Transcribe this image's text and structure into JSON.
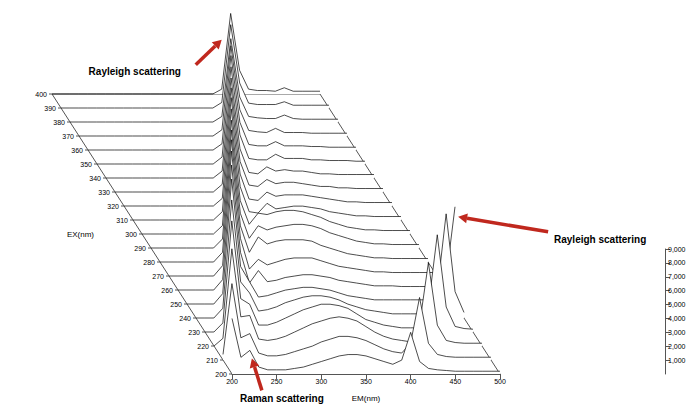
{
  "chart_data": {
    "type": "waterfall",
    "xlabel": "EM(nm)",
    "ylabel": "EX(nm)",
    "color": "#000000",
    "x": [
      200,
      210,
      220,
      230,
      240,
      250,
      260,
      270,
      280,
      290,
      300,
      310,
      320,
      330,
      340,
      350,
      360,
      370,
      380,
      390,
      400,
      410,
      420,
      430,
      440,
      450,
      460,
      470,
      480,
      490,
      500
    ],
    "y": [
      200,
      210,
      220,
      230,
      240,
      250,
      260,
      270,
      280,
      290,
      300,
      310,
      320,
      330,
      340,
      350,
      360,
      370,
      380,
      390,
      400
    ],
    "z": [
      [
        4000,
        1200,
        1700,
        500,
        300,
        300,
        300,
        400,
        500,
        700,
        900,
        1100,
        1300,
        1400,
        1400,
        1300,
        1100,
        900,
        700,
        1000,
        3000,
        900,
        400,
        300,
        250,
        200,
        200,
        200,
        200,
        200,
        200
      ],
      [
        400,
        5500,
        1600,
        1900,
        500,
        300,
        300,
        400,
        600,
        800,
        1000,
        1300,
        1500,
        1700,
        1700,
        1600,
        1400,
        1100,
        800,
        600,
        500,
        1200,
        4500,
        1200,
        400,
        250,
        200,
        200,
        200,
        200,
        200
      ],
      [
        0,
        550,
        7000,
        2100,
        2200,
        500,
        400,
        500,
        700,
        1000,
        1300,
        1600,
        1800,
        2000,
        2100,
        2000,
        1800,
        1400,
        1000,
        700,
        500,
        400,
        300,
        1500,
        6000,
        1500,
        400,
        250,
        200,
        200,
        200
      ],
      [
        0,
        0,
        650,
        8000,
        2400,
        2000,
        500,
        500,
        700,
        1000,
        1300,
        1600,
        1800,
        2000,
        2000,
        1900,
        1700,
        1300,
        900,
        700,
        500,
        400,
        300,
        300,
        300,
        1800,
        7000,
        1800,
        400,
        250,
        200
      ],
      [
        0,
        0,
        0,
        700,
        8500,
        2600,
        1800,
        500,
        600,
        800,
        1100,
        1300,
        1500,
        1600,
        1600,
        1500,
        1300,
        1000,
        800,
        600,
        500,
        400,
        300,
        300,
        300,
        300,
        300,
        1900,
        7500,
        1900,
        400
      ],
      [
        0,
        0,
        0,
        0,
        750,
        9000,
        2700,
        1600,
        500,
        600,
        800,
        1000,
        1100,
        1200,
        1200,
        1100,
        1000,
        800,
        600,
        500,
        400,
        300,
        300,
        300,
        300,
        300,
        300,
        300,
        400,
        1800,
        7000
      ],
      [
        0,
        0,
        0,
        0,
        0,
        750,
        9000,
        2700,
        500,
        1400,
        600,
        700,
        900,
        1000,
        1100,
        1100,
        1000,
        900,
        700,
        600,
        500,
        400,
        300,
        300,
        300,
        250,
        250,
        250,
        250,
        250,
        250
      ],
      [
        0,
        0,
        0,
        0,
        0,
        0,
        750,
        9000,
        2700,
        500,
        1200,
        800,
        1000,
        1200,
        1300,
        1300,
        1300,
        1100,
        900,
        700,
        600,
        500,
        400,
        300,
        300,
        250,
        250,
        250,
        250,
        250,
        250
      ],
      [
        0,
        0,
        0,
        0,
        0,
        0,
        0,
        700,
        8800,
        2600,
        700,
        1800,
        1300,
        1500,
        1600,
        1600,
        1600,
        1500,
        1200,
        1000,
        800,
        600,
        500,
        400,
        300,
        300,
        250,
        250,
        250,
        250,
        250
      ],
      [
        0,
        0,
        0,
        0,
        0,
        0,
        0,
        0,
        650,
        8500,
        2500,
        700,
        1600,
        1300,
        1500,
        1600,
        1700,
        1700,
        1600,
        1400,
        1100,
        900,
        700,
        500,
        400,
        300,
        300,
        250,
        250,
        250,
        250
      ],
      [
        0,
        0,
        0,
        0,
        0,
        0,
        0,
        0,
        0,
        600,
        8200,
        2400,
        700,
        1500,
        1400,
        1600,
        1700,
        1700,
        1600,
        1400,
        1200,
        900,
        700,
        500,
        400,
        300,
        300,
        250,
        250,
        250,
        250
      ],
      [
        0,
        0,
        0,
        0,
        0,
        0,
        0,
        0,
        0,
        0,
        600,
        8000,
        2400,
        600,
        500,
        1200,
        800,
        900,
        1000,
        1000,
        900,
        800,
        600,
        500,
        400,
        300,
        300,
        250,
        250,
        250,
        250
      ],
      [
        0,
        0,
        0,
        0,
        0,
        0,
        0,
        0,
        0,
        0,
        0,
        550,
        7800,
        2300,
        500,
        400,
        1000,
        700,
        800,
        800,
        800,
        700,
        600,
        500,
        400,
        300,
        300,
        250,
        250,
        250,
        250
      ],
      [
        0,
        0,
        0,
        0,
        0,
        0,
        0,
        0,
        0,
        0,
        0,
        0,
        550,
        7500,
        2200,
        500,
        400,
        900,
        600,
        700,
        700,
        600,
        500,
        400,
        400,
        300,
        300,
        250,
        250,
        250,
        250
      ],
      [
        0,
        0,
        0,
        0,
        0,
        0,
        0,
        0,
        0,
        0,
        0,
        0,
        0,
        500,
        7200,
        2100,
        400,
        300,
        800,
        500,
        600,
        500,
        500,
        400,
        300,
        300,
        250,
        250,
        250,
        250,
        250
      ],
      [
        0,
        0,
        0,
        0,
        0,
        0,
        0,
        0,
        0,
        0,
        0,
        0,
        0,
        0,
        500,
        7000,
        2100,
        400,
        300,
        300,
        700,
        400,
        400,
        400,
        300,
        300,
        250,
        250,
        250,
        200,
        200
      ],
      [
        0,
        0,
        0,
        0,
        0,
        0,
        0,
        0,
        0,
        0,
        0,
        0,
        0,
        0,
        0,
        450,
        6800,
        2000,
        400,
        300,
        300,
        600,
        300,
        300,
        300,
        250,
        250,
        200,
        200,
        200,
        200
      ],
      [
        0,
        0,
        0,
        0,
        0,
        0,
        0,
        0,
        0,
        0,
        0,
        0,
        0,
        0,
        0,
        0,
        450,
        6500,
        1900,
        400,
        300,
        250,
        550,
        250,
        250,
        250,
        200,
        200,
        200,
        200,
        200
      ],
      [
        0,
        0,
        0,
        0,
        0,
        0,
        0,
        0,
        0,
        0,
        0,
        0,
        0,
        0,
        0,
        0,
        0,
        400,
        6000,
        1800,
        400,
        300,
        250,
        250,
        500,
        250,
        200,
        200,
        200,
        200,
        200
      ],
      [
        0,
        0,
        0,
        0,
        0,
        0,
        0,
        0,
        0,
        0,
        0,
        0,
        0,
        0,
        0,
        0,
        0,
        0,
        400,
        6000,
        1800,
        350,
        250,
        250,
        250,
        450,
        200,
        200,
        200,
        200,
        200
      ],
      [
        0,
        0,
        0,
        0,
        0,
        0,
        0,
        0,
        0,
        0,
        0,
        0,
        0,
        0,
        0,
        0,
        0,
        0,
        0,
        350,
        5800,
        1700,
        350,
        250,
        250,
        200,
        450,
        200,
        200,
        200,
        200
      ]
    ],
    "xlim": [
      200,
      500
    ],
    "xticks": [
      200,
      250,
      300,
      350,
      400,
      450,
      500
    ],
    "ylim": [
      200,
      400
    ],
    "yticks": [
      200,
      210,
      220,
      230,
      240,
      250,
      260,
      270,
      280,
      290,
      300,
      310,
      320,
      330,
      340,
      350,
      360,
      370,
      380,
      390,
      400
    ],
    "zlim": [
      0,
      9000
    ],
    "zticks": [
      1000,
      2000,
      3000,
      4000,
      5000,
      6000,
      7000,
      8000,
      9000
    ],
    "annotations": [
      {
        "text": "Rayleigh scattering",
        "x": 390,
        "y": 390
      },
      {
        "text": "Rayleigh scattering",
        "x": 480,
        "y": 240
      },
      {
        "text": "Raman scattering",
        "x": 220,
        "y": 200
      }
    ]
  }
}
